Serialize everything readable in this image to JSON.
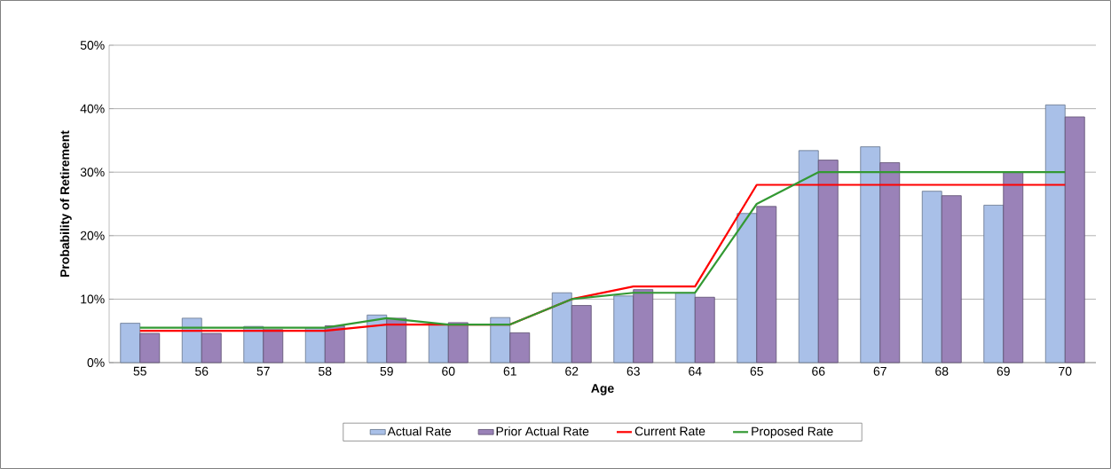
{
  "chart_data": {
    "type": "bar",
    "xlabel": "Age",
    "ylabel": "Probability of Retirement",
    "categories": [
      "55",
      "56",
      "57",
      "58",
      "59",
      "60",
      "61",
      "62",
      "63",
      "64",
      "65",
      "66",
      "67",
      "68",
      "69",
      "70"
    ],
    "series": [
      {
        "name": "Actual Rate",
        "color": "#a9c0e8",
        "values": [
          6.2,
          7.0,
          5.7,
          5.5,
          7.5,
          6.0,
          7.1,
          11.0,
          10.5,
          11.0,
          23.5,
          33.4,
          34.0,
          27.0,
          24.8,
          40.6
        ]
      },
      {
        "name": "Prior Actual Rate",
        "color": "#9a82b8",
        "values": [
          4.6,
          4.6,
          5.2,
          5.8,
          7.0,
          6.3,
          4.7,
          9.0,
          11.5,
          10.3,
          24.6,
          31.9,
          31.5,
          26.3,
          30.0,
          38.7
        ]
      },
      {
        "name": "Current Rate",
        "type": "line",
        "color": "#ff0000",
        "values": [
          5,
          5,
          5,
          5,
          6,
          6,
          6,
          10,
          12,
          12,
          28,
          28,
          28,
          28,
          28,
          28
        ]
      },
      {
        "name": "Proposed Rate",
        "type": "line",
        "color": "#339933",
        "values": [
          5.5,
          5.5,
          5.5,
          5.5,
          7,
          6,
          6,
          10,
          11,
          11,
          25,
          30,
          30,
          30,
          30,
          30
        ]
      }
    ],
    "ylim": [
      0,
      50
    ],
    "yticks": [
      {
        "value": 0,
        "label": "0%"
      },
      {
        "value": 10,
        "label": "10%"
      },
      {
        "value": 20,
        "label": "20%"
      },
      {
        "value": 30,
        "label": "30%"
      },
      {
        "value": 40,
        "label": "40%"
      },
      {
        "value": 50,
        "label": "50%"
      }
    ],
    "grid": "y",
    "legend": "bottom",
    "marker": "none",
    "line_style": "solid"
  }
}
